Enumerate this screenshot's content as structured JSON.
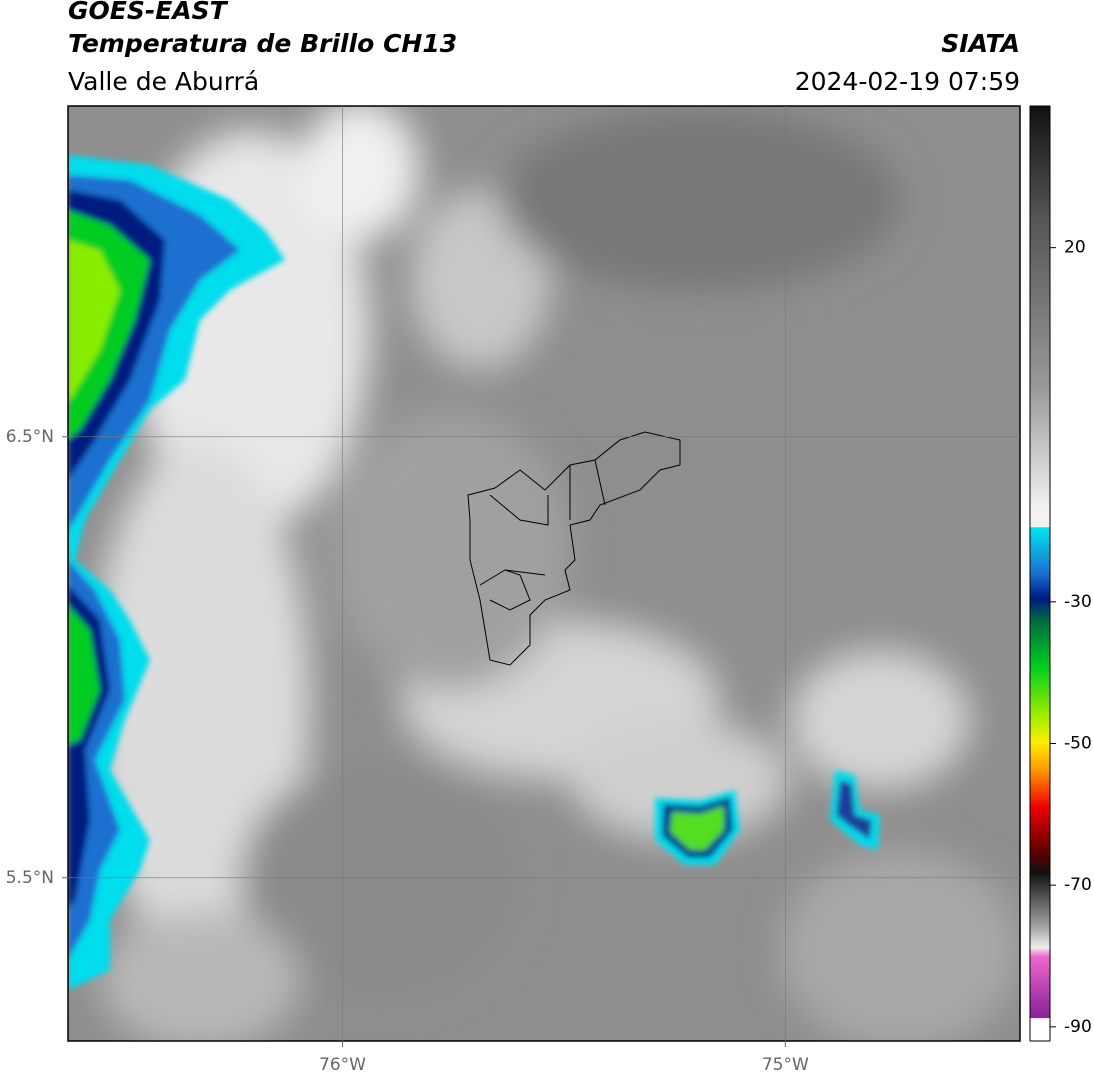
{
  "header": {
    "title": "GOES-EAST",
    "subtitle": "Temperatura de Brillo CH13",
    "region": "Valle de Aburrá",
    "source": "SIATA",
    "datetime": "2024-02-19 07:59"
  },
  "map": {
    "xlim": [
      -76.62,
      -74.47
    ],
    "ylim": [
      5.13,
      7.25
    ],
    "xticks": [
      {
        "value": -76,
        "label": "76°W"
      },
      {
        "value": -75,
        "label": "75°W"
      }
    ],
    "yticks": [
      {
        "value": 5.5,
        "label": "5.5°N"
      },
      {
        "value": 6.5,
        "label": "6.5°N"
      }
    ],
    "grid": true
  },
  "colorbar": {
    "clim": [
      -92,
      40
    ],
    "ticks": [
      20,
      -30,
      -50,
      -70,
      -90
    ]
  }
}
